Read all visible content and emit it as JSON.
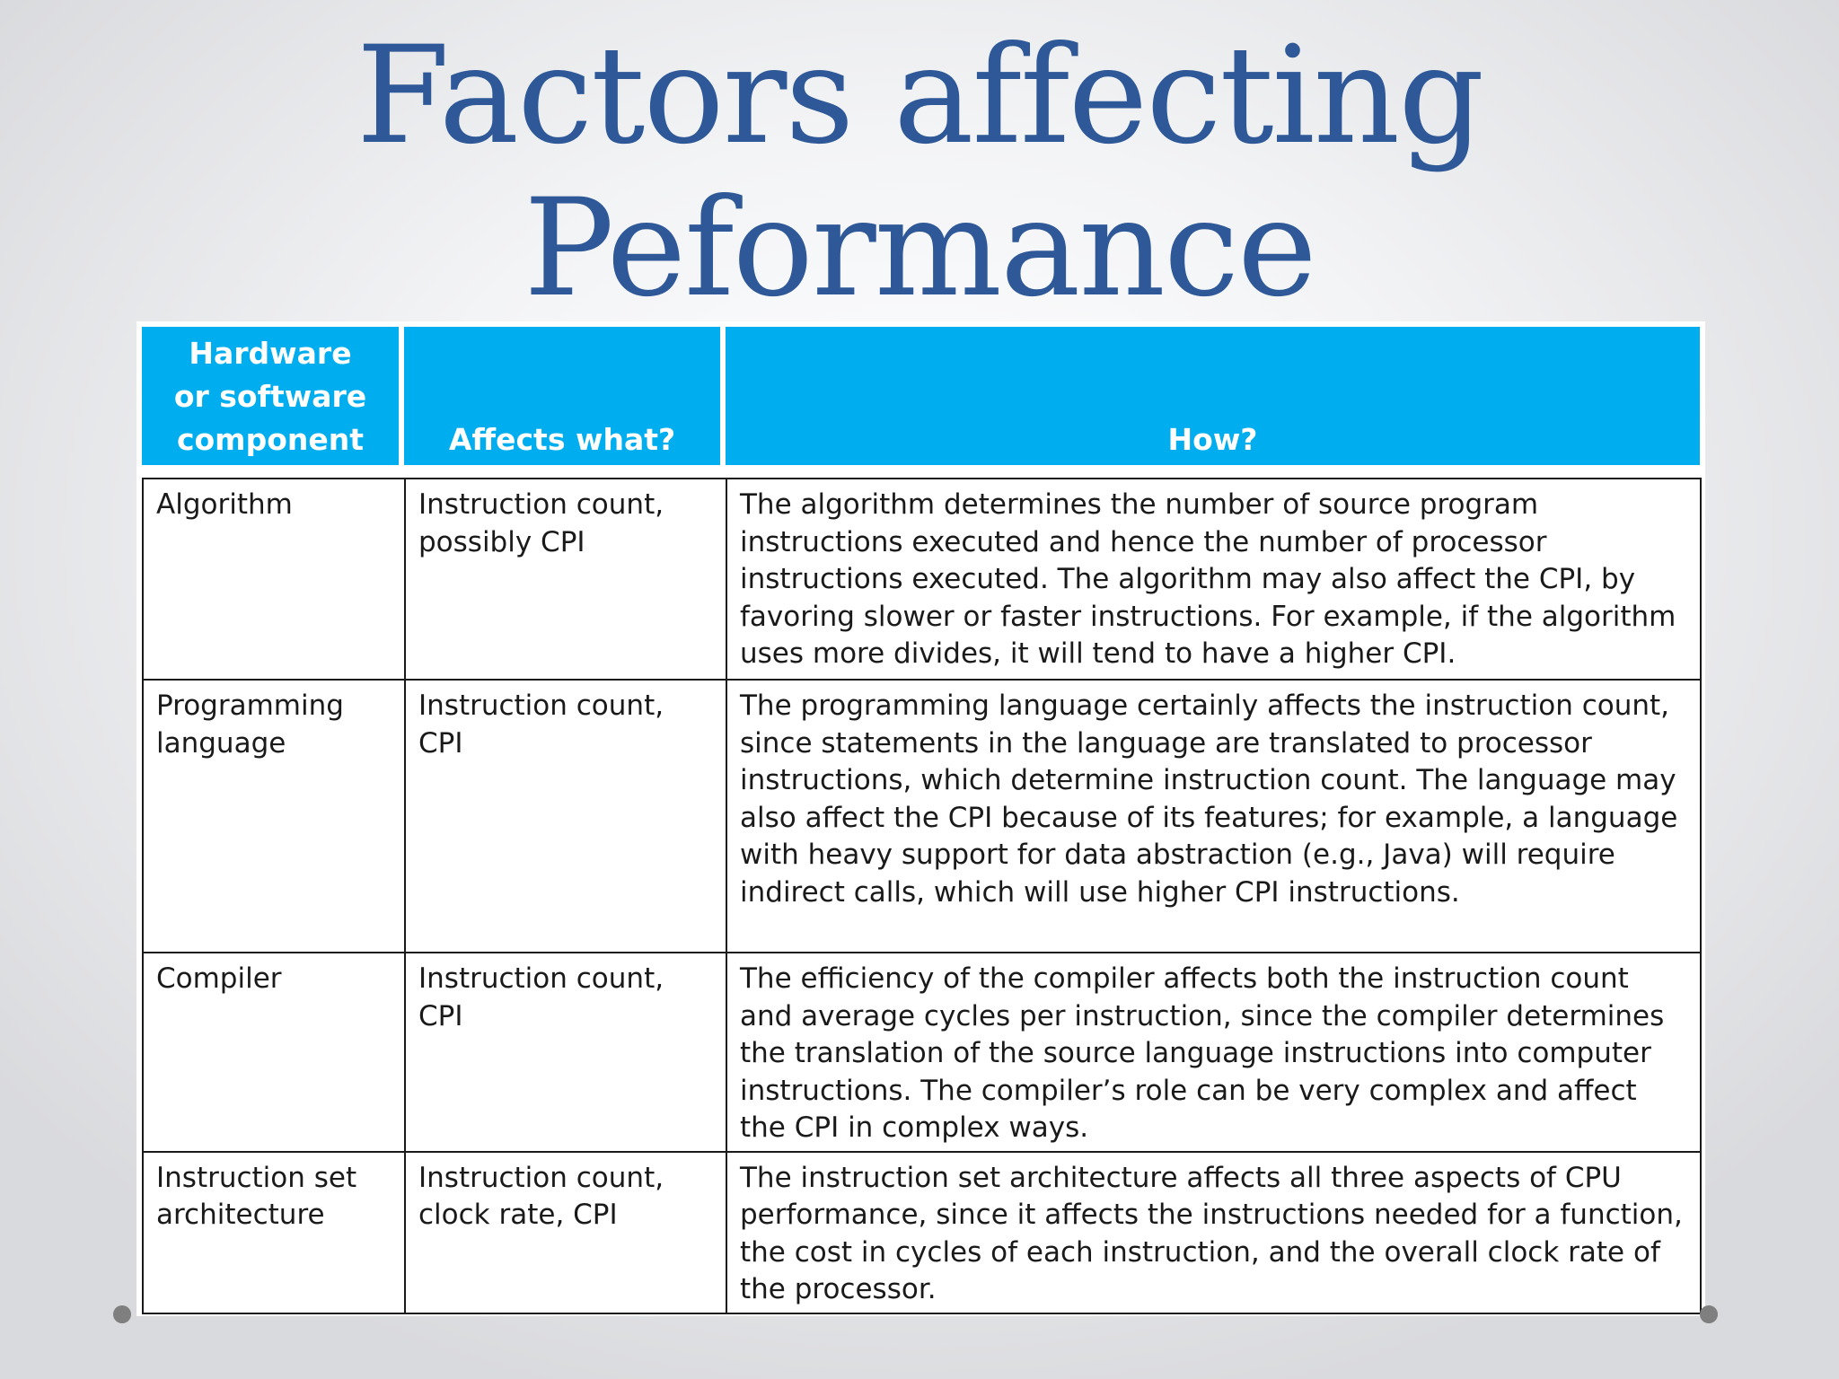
{
  "slide": {
    "title_line1": "Factors affecting",
    "title_line2": "Peformance"
  },
  "table": {
    "headers": [
      [
        "Hardware",
        "or software",
        "component"
      ],
      [
        "Affects what?"
      ],
      [
        "How?"
      ]
    ],
    "rows": [
      {
        "component": "Algorithm",
        "affects": "Instruction count, possibly CPI",
        "how": "The algorithm determines the number of source program instructions executed and hence the number of processor instructions executed. The algorithm may also affect the CPI, by favoring slower or faster instructions. For example, if the algorithm uses more divides, it will tend to have a higher CPI."
      },
      {
        "component": "Programming language",
        "affects": "Instruction count, CPI",
        "how": "The programming language certainly affects the instruction count, since statements in the language are translated to processor instructions, which determine instruction count. The language may also affect the CPI because of its features; for example, a language with heavy support for data abstraction (e.g., Java) will require indirect calls, which will use higher CPI instructions."
      },
      {
        "component": "Compiler",
        "affects": "Instruction count, CPI",
        "how": "The efficiency of the compiler affects both the instruction count and average cycles per instruction, since the compiler determines the translation of the source language instructions into computer instructions. The compiler’s role can be very complex and affect the CPI in complex ways."
      },
      {
        "component": "Instruction set architecture",
        "affects": "Instruction count, clock rate, CPI",
        "how": "The instruction set architecture affects all three aspects of CPU performance, since it affects the instructions needed for a function, the cost in cycles of each instruction, and the overall clock rate of the processor."
      }
    ]
  },
  "colors": {
    "title": "#2e5897",
    "header_bg": "#00aeef",
    "header_text": "#ffffff"
  }
}
